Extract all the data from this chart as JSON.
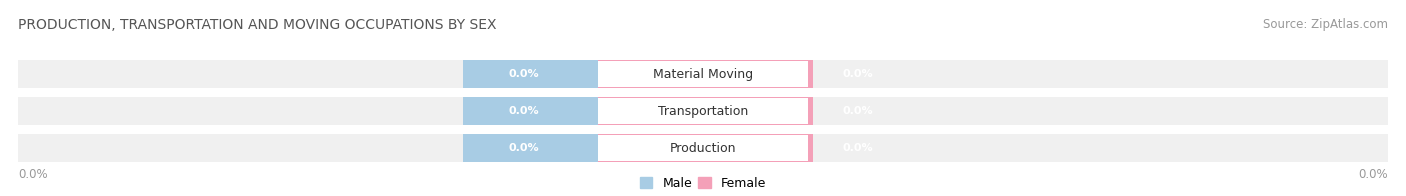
{
  "title": "PRODUCTION, TRANSPORTATION AND MOVING OCCUPATIONS BY SEX",
  "source": "Source: ZipAtlas.com",
  "categories": [
    "Production",
    "Transportation",
    "Material Moving"
  ],
  "male_values": [
    "0.0%",
    "0.0%",
    "0.0%"
  ],
  "female_values": [
    "0.0%",
    "0.0%",
    "0.0%"
  ],
  "male_color": "#a8cce4",
  "female_color": "#f4a0b8",
  "bar_bg_color": "#e8e8e8",
  "male_label": "Male",
  "female_label": "Female",
  "title_fontsize": 10,
  "source_fontsize": 8.5,
  "axis_value": "0.0%",
  "background_color": "#ffffff",
  "title_color": "#555555",
  "source_color": "#999999",
  "axis_color": "#999999",
  "cat_text_color": "#333333",
  "val_text_color": "#ffffff",
  "bar_stripe_color": "#f0f0f0"
}
